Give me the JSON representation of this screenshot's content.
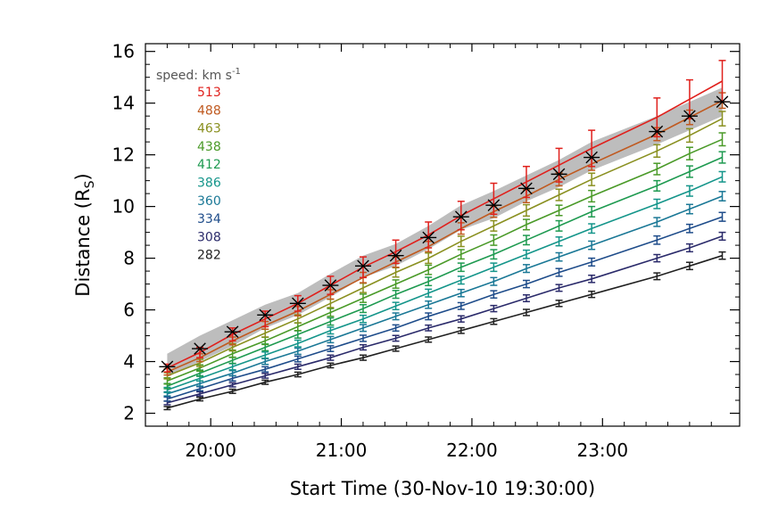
{
  "chart_data": {
    "type": "line",
    "xlabel": "Start Time (30-Nov-10 19:30:00)",
    "ylabel_main": "Distance (R",
    "ylabel_sub": "S",
    "ylabel_close": ")",
    "xlim": [
      19.5,
      24.05
    ],
    "ylim": [
      1.5,
      16.3
    ],
    "x_ticks": [
      {
        "value": 20,
        "label": "20:00"
      },
      {
        "value": 21,
        "label": "21:00"
      },
      {
        "value": 22,
        "label": "22:00"
      },
      {
        "value": 23,
        "label": "23:00"
      }
    ],
    "y_ticks": [
      {
        "value": 2,
        "label": "2"
      },
      {
        "value": 4,
        "label": "4"
      },
      {
        "value": 6,
        "label": "6"
      },
      {
        "value": 8,
        "label": "8"
      },
      {
        "value": 10,
        "label": "10"
      },
      {
        "value": 12,
        "label": "12"
      },
      {
        "value": 14,
        "label": "14"
      },
      {
        "value": 16,
        "label": "16"
      }
    ],
    "x_times": [
      "19:40",
      "19:55",
      "20:10",
      "20:25",
      "20:40",
      "20:55",
      "21:10",
      "21:25",
      "21:40",
      "21:55",
      "22:10",
      "22:25",
      "22:40",
      "22:55",
      "23:25",
      "23:40",
      "23:55"
    ],
    "x": [
      19.667,
      19.917,
      20.167,
      20.417,
      20.667,
      20.917,
      21.167,
      21.417,
      21.667,
      21.917,
      22.167,
      22.417,
      22.667,
      22.917,
      23.417,
      23.667,
      23.917
    ],
    "observed": {
      "name": "observed",
      "y": [
        3.8,
        4.5,
        5.15,
        5.8,
        6.25,
        6.95,
        7.7,
        8.1,
        8.8,
        9.6,
        10.05,
        10.7,
        11.25,
        11.9,
        12.9,
        13.5,
        14.05
      ],
      "band_lower": [
        3.4,
        4.0,
        4.6,
        5.3,
        5.8,
        6.5,
        7.25,
        7.7,
        8.35,
        9.1,
        9.55,
        10.2,
        10.75,
        11.4,
        12.4,
        12.95,
        13.5
      ],
      "band_upper": [
        4.3,
        5.0,
        5.6,
        6.2,
        6.65,
        7.4,
        8.1,
        8.55,
        9.25,
        10.05,
        10.6,
        11.2,
        11.8,
        12.5,
        13.5,
        14.05,
        14.6
      ]
    },
    "legend_title": "speed: km s",
    "legend_title_sup": "-1",
    "series": [
      {
        "name": "513",
        "color": "#e0201c",
        "y": [
          3.75,
          4.35,
          5.05,
          5.65,
          6.25,
          6.95,
          7.65,
          8.25,
          8.9,
          9.65,
          10.3,
          10.95,
          11.6,
          12.25,
          13.45,
          14.15,
          14.85
        ],
        "err": [
          0.15,
          0.2,
          0.25,
          0.3,
          0.3,
          0.35,
          0.4,
          0.45,
          0.5,
          0.55,
          0.6,
          0.6,
          0.65,
          0.7,
          0.75,
          0.75,
          0.8
        ]
      },
      {
        "name": "488",
        "color": "#c05a20",
        "y": [
          3.6,
          4.15,
          4.8,
          5.4,
          5.95,
          6.6,
          7.25,
          7.85,
          8.45,
          9.15,
          9.8,
          10.4,
          11.05,
          11.65,
          12.8,
          13.45,
          14.1
        ],
        "err": [
          0.12,
          0.15,
          0.15,
          0.15,
          0.18,
          0.18,
          0.2,
          0.2,
          0.2,
          0.22,
          0.22,
          0.25,
          0.25,
          0.25,
          0.25,
          0.28,
          0.3
        ]
      },
      {
        "name": "463",
        "color": "#8a9020",
        "y": [
          3.45,
          3.95,
          4.55,
          5.1,
          5.65,
          6.25,
          6.85,
          7.45,
          8.0,
          8.65,
          9.25,
          9.85,
          10.45,
          11.05,
          12.15,
          12.75,
          13.4
        ],
        "err": [
          0.12,
          0.14,
          0.14,
          0.15,
          0.16,
          0.16,
          0.18,
          0.18,
          0.2,
          0.2,
          0.2,
          0.22,
          0.22,
          0.24,
          0.24,
          0.26,
          0.28
        ]
      },
      {
        "name": "438",
        "color": "#4a9a28",
        "y": [
          3.25,
          3.75,
          4.3,
          4.8,
          5.35,
          5.9,
          6.45,
          7.0,
          7.55,
          8.15,
          8.7,
          9.3,
          9.85,
          10.4,
          11.45,
          12.05,
          12.6
        ],
        "err": [
          0.12,
          0.12,
          0.14,
          0.14,
          0.15,
          0.15,
          0.16,
          0.16,
          0.18,
          0.18,
          0.2,
          0.2,
          0.2,
          0.22,
          0.22,
          0.24,
          0.25
        ]
      },
      {
        "name": "412",
        "color": "#1e9a50",
        "y": [
          3.05,
          3.55,
          4.05,
          4.55,
          5.05,
          5.55,
          6.05,
          6.6,
          7.1,
          7.65,
          8.15,
          8.7,
          9.25,
          9.8,
          10.8,
          11.35,
          11.9
        ],
        "err": [
          0.1,
          0.12,
          0.12,
          0.13,
          0.14,
          0.14,
          0.15,
          0.15,
          0.16,
          0.16,
          0.18,
          0.18,
          0.2,
          0.2,
          0.2,
          0.22,
          0.22
        ]
      },
      {
        "name": "386",
        "color": "#14958a",
        "y": [
          2.9,
          3.35,
          3.8,
          4.25,
          4.7,
          5.2,
          5.65,
          6.15,
          6.65,
          7.15,
          7.65,
          8.15,
          8.65,
          9.15,
          10.1,
          10.6,
          11.15
        ],
        "err": [
          0.1,
          0.1,
          0.12,
          0.12,
          0.13,
          0.13,
          0.14,
          0.14,
          0.15,
          0.15,
          0.16,
          0.16,
          0.17,
          0.18,
          0.18,
          0.2,
          0.2
        ]
      },
      {
        "name": "360",
        "color": "#1a7896",
        "y": [
          2.75,
          3.15,
          3.55,
          4.0,
          4.4,
          4.85,
          5.3,
          5.75,
          6.2,
          6.65,
          7.1,
          7.6,
          8.05,
          8.5,
          9.4,
          9.9,
          10.4
        ],
        "err": [
          0.08,
          0.1,
          0.1,
          0.11,
          0.12,
          0.12,
          0.13,
          0.13,
          0.14,
          0.14,
          0.15,
          0.15,
          0.16,
          0.16,
          0.17,
          0.18,
          0.18
        ]
      },
      {
        "name": "334",
        "color": "#1e4c8a",
        "y": [
          2.55,
          2.95,
          3.35,
          3.7,
          4.1,
          4.5,
          4.9,
          5.3,
          5.75,
          6.15,
          6.6,
          7.0,
          7.45,
          7.85,
          8.7,
          9.15,
          9.6
        ],
        "err": [
          0.08,
          0.08,
          0.1,
          0.1,
          0.11,
          0.11,
          0.12,
          0.12,
          0.13,
          0.13,
          0.14,
          0.14,
          0.15,
          0.15,
          0.16,
          0.16,
          0.17
        ]
      },
      {
        "name": "308",
        "color": "#2a2a6a",
        "y": [
          2.4,
          2.75,
          3.1,
          3.45,
          3.8,
          4.15,
          4.55,
          4.9,
          5.3,
          5.65,
          6.05,
          6.45,
          6.85,
          7.2,
          8.0,
          8.4,
          8.85
        ],
        "err": [
          0.07,
          0.08,
          0.08,
          0.09,
          0.1,
          0.1,
          0.1,
          0.11,
          0.11,
          0.12,
          0.12,
          0.13,
          0.13,
          0.14,
          0.14,
          0.15,
          0.15
        ]
      },
      {
        "name": "282",
        "color": "#202020",
        "y": [
          2.2,
          2.55,
          2.85,
          3.2,
          3.5,
          3.85,
          4.15,
          4.5,
          4.85,
          5.2,
          5.55,
          5.9,
          6.25,
          6.6,
          7.3,
          7.7,
          8.1
        ],
        "err": [
          0.06,
          0.07,
          0.08,
          0.08,
          0.09,
          0.09,
          0.1,
          0.1,
          0.1,
          0.11,
          0.11,
          0.12,
          0.12,
          0.12,
          0.13,
          0.14,
          0.14
        ]
      }
    ],
    "band_color": "#bdbdbd",
    "marker_color": "#000000",
    "grid": false,
    "legend_position": "top-left, inside plot"
  }
}
